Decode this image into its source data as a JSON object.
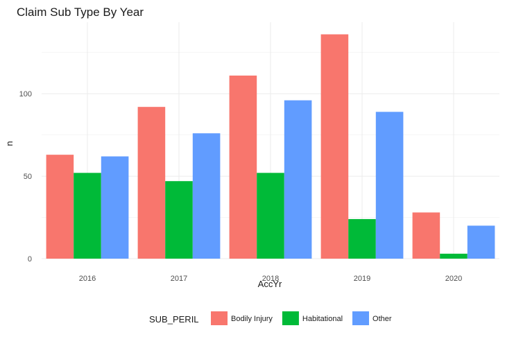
{
  "chart_data": {
    "type": "bar",
    "title": "Claim Sub Type By Year",
    "xlabel": "AccYr",
    "ylabel": "n",
    "categories": [
      "2016",
      "2017",
      "2018",
      "2019",
      "2020"
    ],
    "series": [
      {
        "name": "Bodily Injury",
        "color": "#F8766D",
        "values": [
          63,
          92,
          111,
          136,
          28
        ]
      },
      {
        "name": "Habitational",
        "color": "#00BA38",
        "values": [
          52,
          47,
          52,
          24,
          3
        ]
      },
      {
        "name": "Other",
        "color": "#619CFF",
        "values": [
          62,
          76,
          96,
          89,
          20
        ]
      }
    ],
    "ylim": [
      0,
      140
    ],
    "yticks": [
      0,
      50,
      100
    ],
    "grid": true,
    "legend": {
      "title": "SUB_PERIL",
      "position": "bottom"
    }
  }
}
